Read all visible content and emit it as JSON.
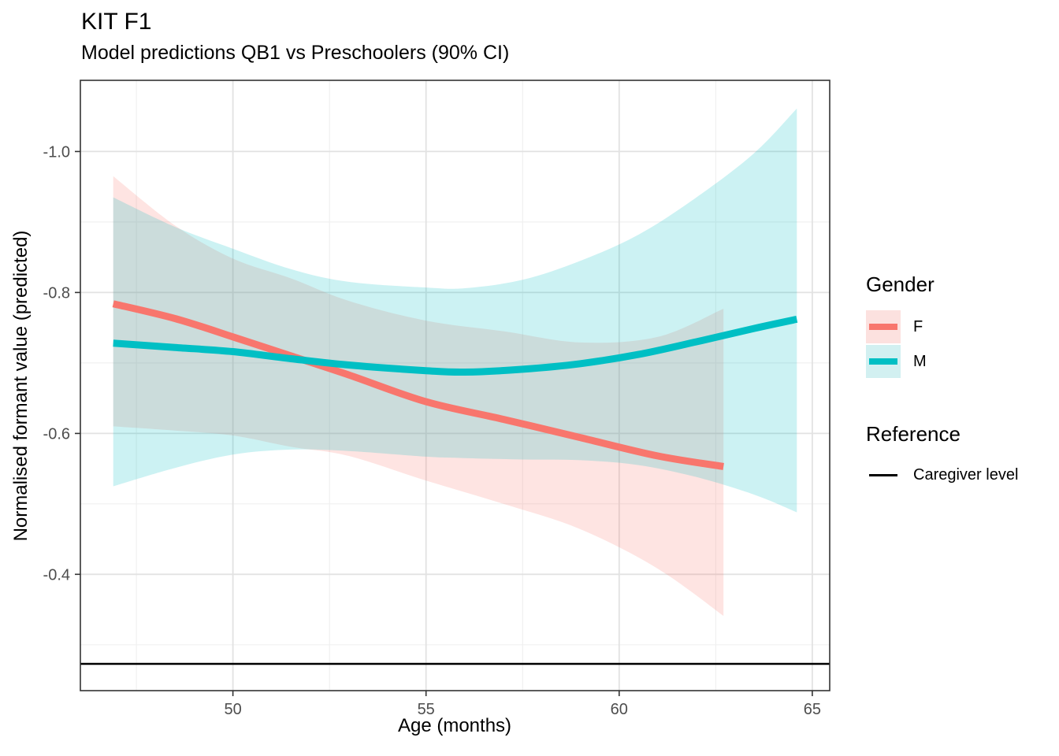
{
  "page": {
    "title": "KIT F1",
    "subtitle": "Model predictions QB1 vs Preschoolers (90% CI)"
  },
  "legend": {
    "gender": {
      "title": "Gender",
      "items": [
        {
          "label": "F",
          "line_color": "#F8766D",
          "fill_color": "#FCE1DF"
        },
        {
          "label": "M",
          "line_color": "#00BFC4",
          "fill_color": "#D2F0F1"
        }
      ]
    },
    "reference": {
      "title": "Reference",
      "items": [
        {
          "label": "Caregiver level",
          "line_color": "#000000"
        }
      ]
    }
  },
  "chart_data": {
    "type": "line",
    "title": "KIT F1",
    "subtitle": "Model predictions QB1 vs Preschoolers (90% CI)",
    "xlabel": "Age (months)",
    "ylabel": "Normalised formant value (predicted)",
    "ci_level": "90%",
    "grid": true,
    "legend_position": "right",
    "y_axis_reversed": true,
    "x_range": [
      46.05,
      65.45
    ],
    "y_range": [
      -1.101,
      -0.235
    ],
    "x_ticks": [
      50,
      55,
      60,
      65
    ],
    "x_minor_ticks": [
      47.5,
      52.5,
      57.5,
      62.5
    ],
    "y_ticks": [
      -1.0,
      -0.8,
      -0.6,
      -0.4
    ],
    "y_minor_ticks": [
      -0.9,
      -0.7,
      -0.5,
      -0.3
    ],
    "reference_line": {
      "label": "Caregiver level",
      "value": -0.273,
      "color": "#000000"
    },
    "colors": {
      "grid_major": "#E2E2E2",
      "grid_minor": "#F0F0F0",
      "panel_border": "#333333",
      "tick": "#333333",
      "tick_label": "#4D4D4D"
    },
    "series": [
      {
        "name": "F",
        "color": "#F8766D",
        "fill": "rgba(248,118,109,0.20)",
        "x": [
          46.9,
          48.5,
          50.0,
          51.5,
          53.0,
          55.0,
          57.0,
          59.0,
          61.0,
          62.7
        ],
        "y": [
          -0.784,
          -0.763,
          -0.737,
          -0.71,
          -0.683,
          -0.645,
          -0.62,
          -0.594,
          -0.568,
          -0.553
        ],
        "ci_upper": [
          -0.965,
          -0.895,
          -0.848,
          -0.82,
          -0.788,
          -0.76,
          -0.745,
          -0.729,
          -0.737,
          -0.777
        ],
        "ci_lower": [
          -0.61,
          -0.604,
          -0.597,
          -0.581,
          -0.568,
          -0.533,
          -0.5,
          -0.464,
          -0.408,
          -0.341
        ]
      },
      {
        "name": "M",
        "color": "#00BFC4",
        "fill": "rgba(0,191,196,0.20)",
        "x": [
          46.9,
          48.5,
          50.0,
          51.5,
          53.0,
          55.0,
          56.0,
          57.5,
          59.0,
          60.5,
          62.0,
          63.5,
          64.6
        ],
        "y": [
          -0.728,
          -0.722,
          -0.716,
          -0.706,
          -0.697,
          -0.689,
          -0.687,
          -0.691,
          -0.699,
          -0.712,
          -0.73,
          -0.749,
          -0.762
        ],
        "ci_upper": [
          -0.935,
          -0.893,
          -0.862,
          -0.833,
          -0.815,
          -0.807,
          -0.806,
          -0.818,
          -0.845,
          -0.882,
          -0.935,
          -0.998,
          -1.061
        ],
        "ci_lower": [
          -0.525,
          -0.551,
          -0.57,
          -0.577,
          -0.575,
          -0.567,
          -0.565,
          -0.563,
          -0.562,
          -0.555,
          -0.538,
          -0.513,
          -0.488
        ]
      }
    ]
  }
}
